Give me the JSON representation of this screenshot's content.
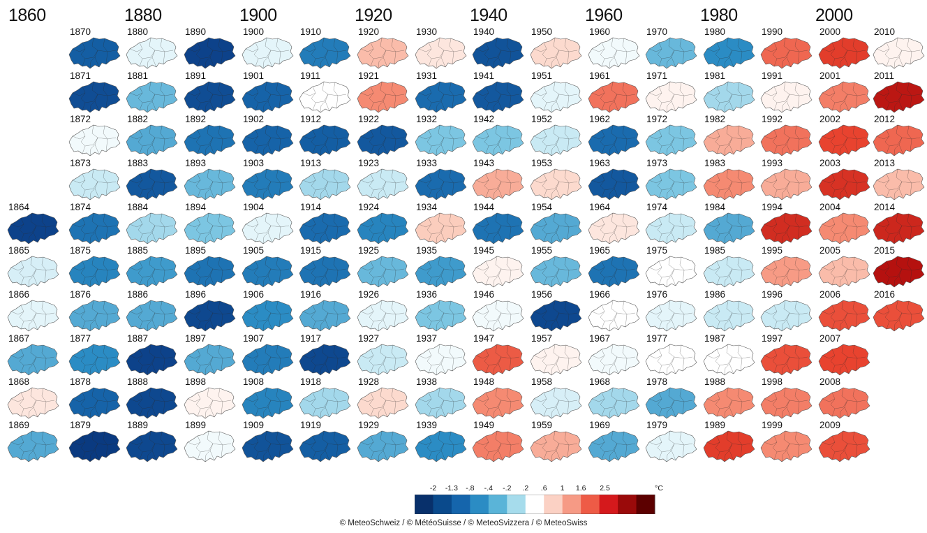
{
  "chart_data": {
    "type": "heatmap",
    "decade_labels": [
      "1860",
      "1880",
      "1900",
      "1920",
      "1940",
      "1960",
      "1980",
      "2000"
    ],
    "units": "°C",
    "scale_ticks": [
      "-2",
      "-1.3",
      "-.8",
      "-.4",
      "-.2",
      ".2",
      ".6",
      "1",
      "1.6",
      "2.5"
    ],
    "colors": [
      "#08306b",
      "#0a4a8c",
      "#1565ac",
      "#2b8cc4",
      "#5ab4d8",
      "#a6dcec",
      "#ffffff",
      "#fbd1c4",
      "#f69a85",
      "#ee5b46",
      "#d5191c",
      "#9a0a0a",
      "#5c0000"
    ],
    "columns": [
      {
        "years": [
          "1864",
          "1865",
          "1866",
          "1867",
          "1868",
          "1869"
        ],
        "values": [
          -1.9,
          -0.1,
          0.0,
          -0.6,
          0.4,
          -0.6
        ]
      },
      {
        "years": [
          "1870",
          "1871",
          "1872",
          "1873",
          "1874",
          "1875",
          "1876",
          "1877",
          "1878",
          "1879"
        ],
        "values": [
          -1.4,
          -1.7,
          0.1,
          -0.2,
          -1.1,
          -0.9,
          -0.6,
          -0.8,
          -1.3,
          -2.2
        ]
      },
      {
        "years": [
          "1880",
          "1881",
          "1882",
          "1883",
          "1884",
          "1885",
          "1886",
          "1887",
          "1888",
          "1889"
        ],
        "values": [
          0.0,
          -0.5,
          -0.6,
          -1.5,
          -0.3,
          -0.7,
          -0.6,
          -1.9,
          -1.8,
          -1.8
        ]
      },
      {
        "years": [
          "1890",
          "1891",
          "1892",
          "1893",
          "1894",
          "1895",
          "1896",
          "1897",
          "1898",
          "1899"
        ],
        "values": [
          -1.9,
          -1.7,
          -1.1,
          -0.5,
          -0.4,
          -1.1,
          -1.8,
          -0.6,
          0.3,
          0.1
        ]
      },
      {
        "years": [
          "1900",
          "1901",
          "1902",
          "1903",
          "1904",
          "1905",
          "1906",
          "1907",
          "1908",
          "1909"
        ],
        "values": [
          0.0,
          -1.3,
          -1.3,
          -1.0,
          0.0,
          -1.0,
          -0.8,
          -1.0,
          -0.9,
          -1.6
        ]
      },
      {
        "years": [
          "1910",
          "1911",
          "1912",
          "1913",
          "1914",
          "1915",
          "1916",
          "1917",
          "1918",
          "1919"
        ],
        "values": [
          -1.0,
          0.2,
          -1.4,
          -0.3,
          -1.2,
          -1.1,
          -0.6,
          -1.8,
          -0.3,
          -1.4
        ]
      },
      {
        "years": [
          "1920",
          "1921",
          "1922",
          "1923",
          "1924",
          "1925",
          "1926",
          "1927",
          "1928",
          "1929"
        ],
        "values": [
          0.7,
          1.0,
          -1.5,
          -0.2,
          -0.9,
          -0.5,
          0.0,
          -0.2,
          0.5,
          -0.6
        ]
      },
      {
        "years": [
          "1930",
          "1931",
          "1932",
          "1933",
          "1934",
          "1935",
          "1936",
          "1937",
          "1938",
          "1939"
        ],
        "values": [
          0.4,
          -1.2,
          -0.4,
          -1.2,
          0.6,
          -0.7,
          -0.4,
          0.1,
          -0.3,
          -0.8
        ]
      },
      {
        "years": [
          "1940",
          "1941",
          "1942",
          "1943",
          "1944",
          "1945",
          "1946",
          "1947",
          "1948",
          "1949"
        ],
        "values": [
          -1.6,
          -1.5,
          -0.4,
          0.8,
          -1.1,
          0.3,
          0.1,
          1.4,
          1.0,
          1.1
        ]
      },
      {
        "years": [
          "1950",
          "1951",
          "1952",
          "1953",
          "1954",
          "1955",
          "1956",
          "1957",
          "1958",
          "1959"
        ],
        "values": [
          0.5,
          0.0,
          -0.2,
          0.5,
          -0.6,
          -0.5,
          -1.8,
          0.3,
          -0.1,
          0.8
        ]
      },
      {
        "years": [
          "1960",
          "1961",
          "1962",
          "1963",
          "1964",
          "1965",
          "1966",
          "1967",
          "1968",
          "1969"
        ],
        "values": [
          0.1,
          1.2,
          -1.2,
          -1.5,
          0.4,
          -1.1,
          0.2,
          0.1,
          -0.3,
          -0.6
        ]
      },
      {
        "years": [
          "1970",
          "1971",
          "1972",
          "1973",
          "1974",
          "1975",
          "1976",
          "1977",
          "1978",
          "1979"
        ],
        "values": [
          -0.5,
          0.3,
          -0.4,
          -0.4,
          -0.2,
          0.2,
          0.0,
          0.2,
          -0.6,
          0.0
        ]
      },
      {
        "years": [
          "1980",
          "1981",
          "1982",
          "1983",
          "1984",
          "1985",
          "1986",
          "1987",
          "1988",
          "1989"
        ],
        "values": [
          -0.8,
          -0.3,
          0.8,
          1.0,
          -0.6,
          -0.2,
          -0.2,
          0.2,
          1.0,
          1.7
        ]
      },
      {
        "years": [
          "1990",
          "1991",
          "1992",
          "1993",
          "1994",
          "1995",
          "1996",
          "1997",
          "1998",
          "1999"
        ],
        "values": [
          1.3,
          0.3,
          1.2,
          0.8,
          2.0,
          0.9,
          -0.2,
          1.5,
          1.1,
          1.0
        ]
      },
      {
        "years": [
          "2000",
          "2001",
          "2002",
          "2003",
          "2004",
          "2005",
          "2006",
          "2007",
          "2008",
          "2009"
        ],
        "values": [
          1.7,
          1.1,
          1.6,
          1.9,
          1.0,
          0.7,
          1.5,
          1.6,
          1.2,
          1.5
        ]
      },
      {
        "years": [
          "2010",
          "2011",
          "2012",
          "2013",
          "2014",
          "2015",
          "2016"
        ],
        "values": [
          0.3,
          2.4,
          1.3,
          0.7,
          2.1,
          2.5,
          1.5
        ]
      }
    ]
  },
  "copyright": "© MeteoSchweiz / © MétéoSuisse / © MeteoSvizzera / © MeteoSwiss"
}
